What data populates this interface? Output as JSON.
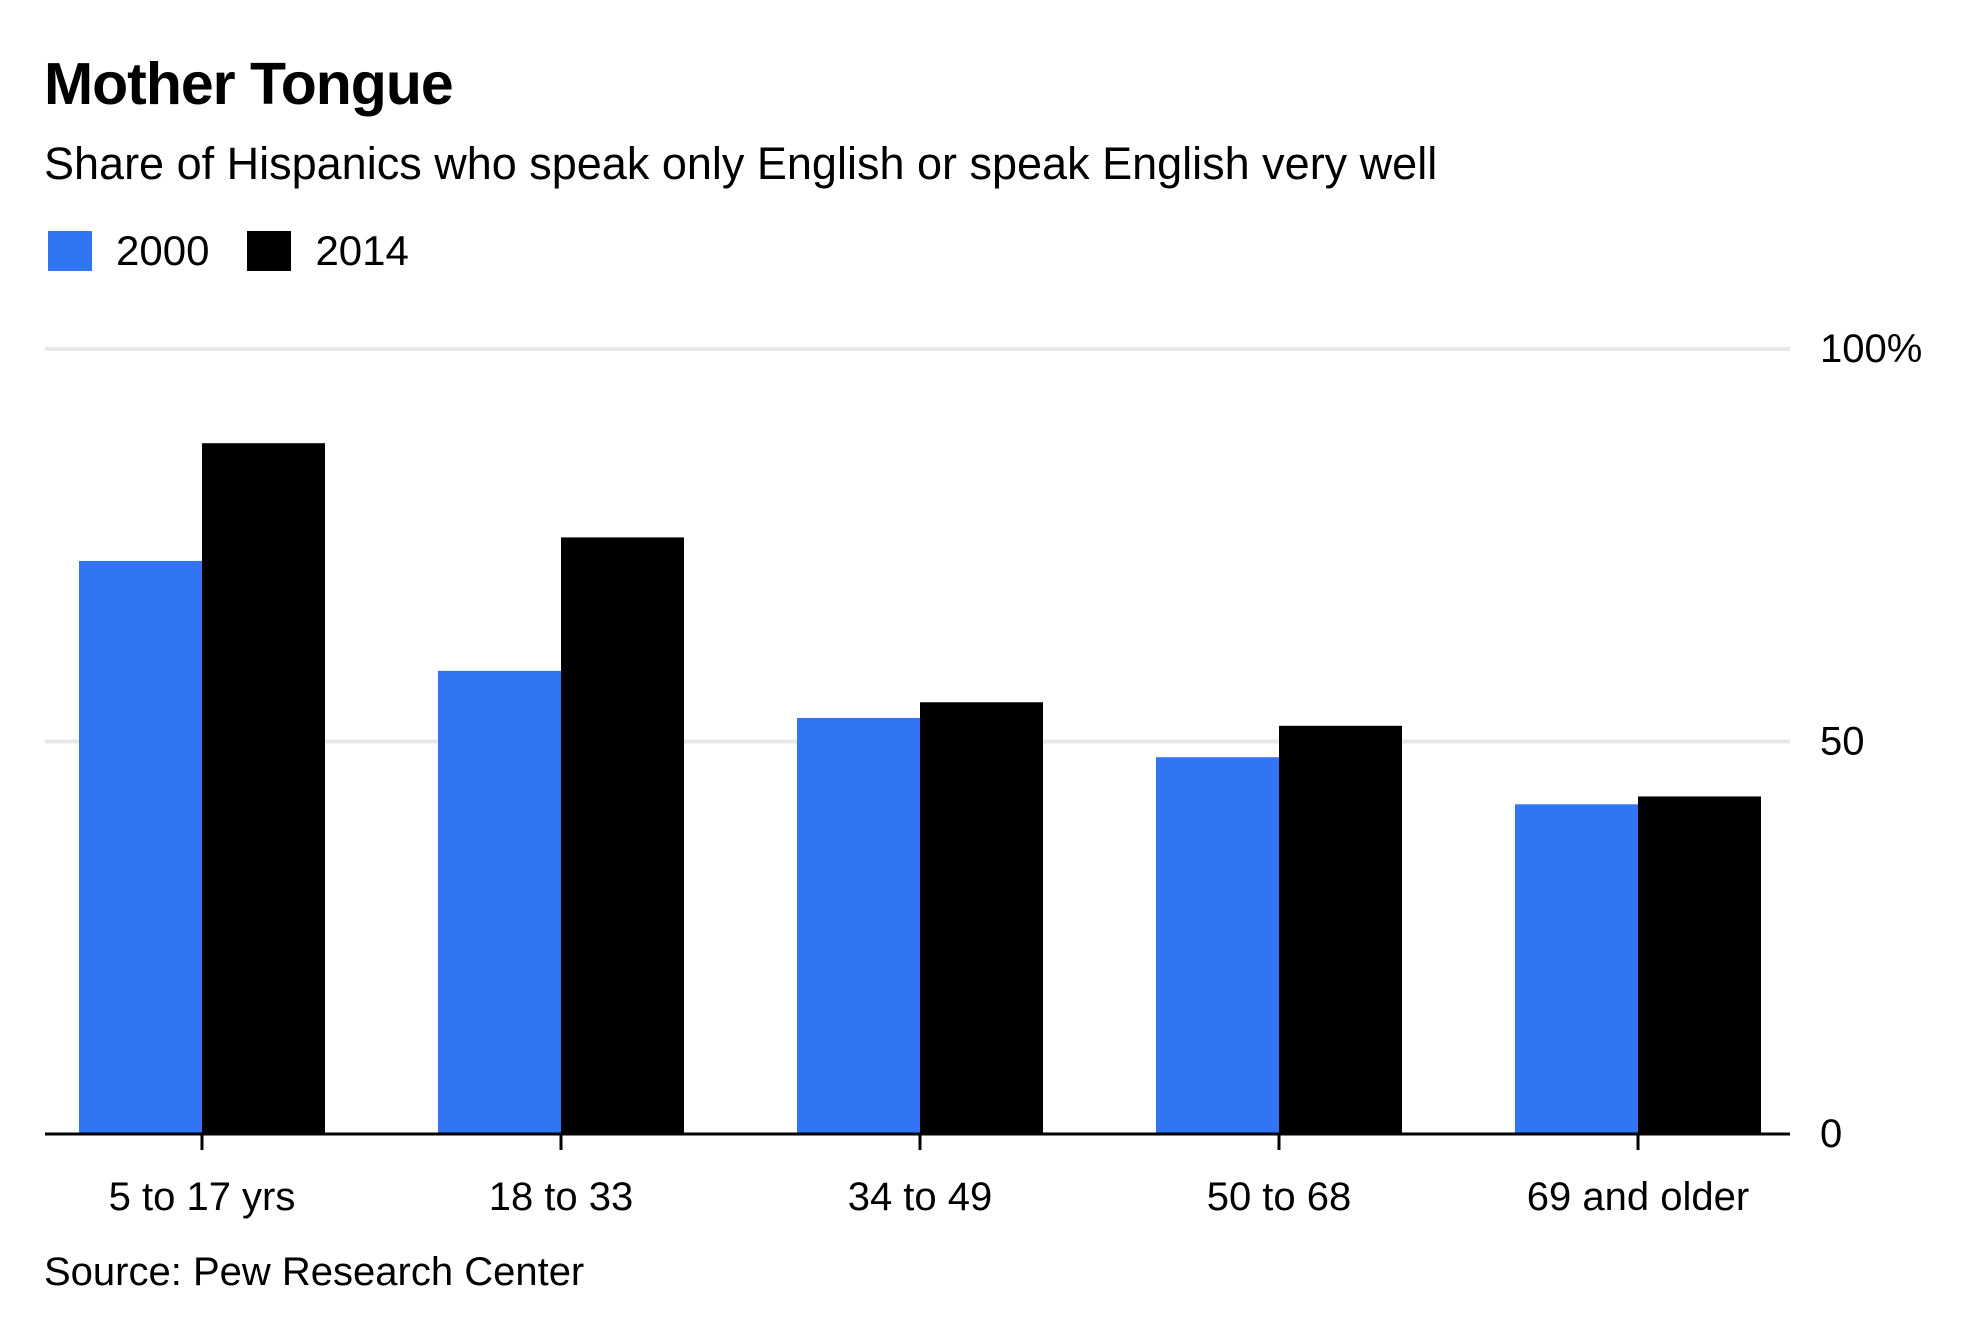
{
  "chart_data": {
    "type": "bar",
    "title": "Mother Tongue",
    "subtitle": "Share of Hispanics who speak only English or speak English very well",
    "source": "Source: Pew Research Center",
    "categories": [
      "5 to 17 yrs",
      "18 to 33",
      "34 to 49",
      "50 to 68",
      "69 and older"
    ],
    "series": [
      {
        "name": "2000",
        "color": "#3175f5",
        "values": [
          73,
          59,
          53,
          48,
          42
        ]
      },
      {
        "name": "2014",
        "color": "#000000",
        "values": [
          88,
          76,
          55,
          52,
          43
        ]
      }
    ],
    "ylim": [
      0,
      100
    ],
    "yticks": [
      {
        "value": 0,
        "label": "0"
      },
      {
        "value": 50,
        "label": "50"
      },
      {
        "value": 100,
        "label": "100%"
      }
    ],
    "grid": true,
    "gridline_color": "#e8e8e8",
    "legend_position": "top-left",
    "xlabel": "",
    "ylabel": ""
  }
}
